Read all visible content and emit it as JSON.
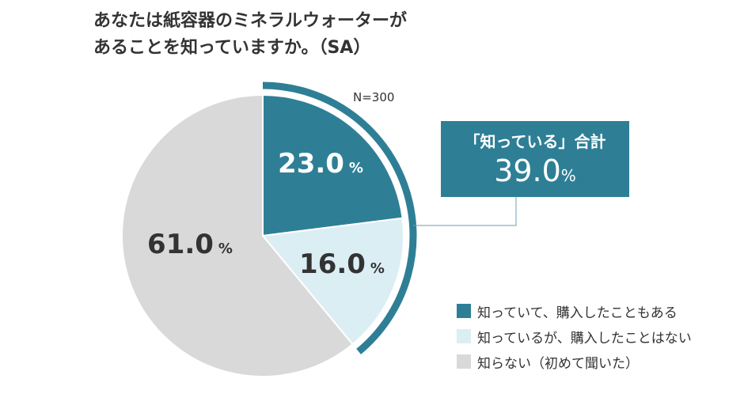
{
  "chart_data": {
    "type": "pie",
    "title_lines": [
      "あなたは紙容器のミネラルウォーターが",
      "あることを知っていますか。（SA）"
    ],
    "note": "N=300",
    "slices": [
      {
        "label": "知っていて、購入したこともある",
        "value": 23.0,
        "display": "23.0",
        "color": "#2e7f96",
        "text_color": "#ffffff"
      },
      {
        "label": "知っているが、購入したことはない",
        "value": 16.0,
        "display": "16.0",
        "color": "#dbeef4",
        "text_color": "#333333"
      },
      {
        "label": "知らない（初めて聞いた）",
        "value": 61.0,
        "display": "61.0",
        "color": "#d9d9d9",
        "text_color": "#333333"
      }
    ],
    "unit": "%",
    "callout": {
      "label": "「知っている」合計",
      "value": "39.0",
      "unit": "%",
      "covers": 39.0
    },
    "legend_position": "bottom-right"
  }
}
